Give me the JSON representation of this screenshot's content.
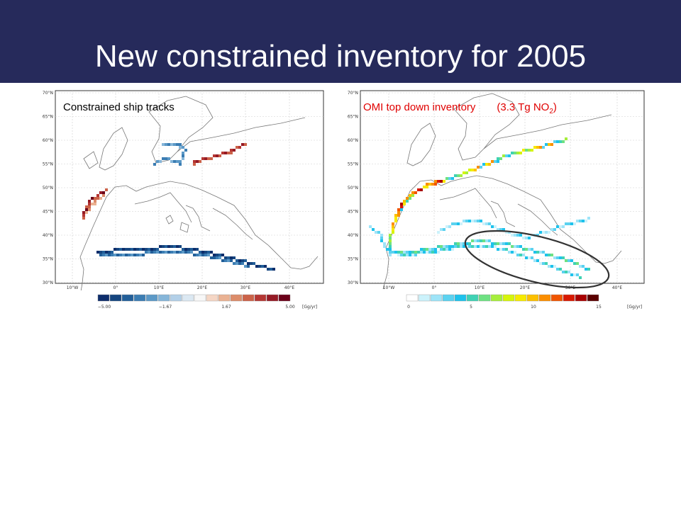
{
  "title": "New constrained inventory for 2005",
  "colors": {
    "title_bg": "#262a5b",
    "title_text": "#ffffff",
    "right_label": "#e00000",
    "left_colorbar": [
      "#0d2d6b",
      "#15457f",
      "#225f99",
      "#3b7db3",
      "#5c99c7",
      "#86b6d9",
      "#b3d0e8",
      "#dbe8f2",
      "#f7f7f7",
      "#f5d6c5",
      "#eab293",
      "#dc8c6a",
      "#cc6248",
      "#b53633",
      "#951a25",
      "#6b0019"
    ],
    "right_colorbar": [
      "#ffffff",
      "#ccf2fb",
      "#9ee4f8",
      "#5bd2f0",
      "#1ec2ec",
      "#3fd2b4",
      "#6ee182",
      "#a6ee3c",
      "#d6f50a",
      "#f6ea00",
      "#fcc000",
      "#fb8e00",
      "#f05400",
      "#d81800",
      "#a80000",
      "#5a0000"
    ]
  },
  "left_map": {
    "label": "Constrained ship tracks",
    "lat_ticks": [
      "70°N",
      "65°N",
      "60°N",
      "55°N",
      "50°N",
      "45°N",
      "40°N",
      "35°N",
      "30°N"
    ],
    "lon_ticks": [
      "10°W",
      "0°",
      "10°E",
      "20°E",
      "30°E",
      "40°E"
    ],
    "colorbar_ticks": [
      "−5.00",
      "−1.67",
      "1.67",
      "5.00"
    ],
    "colorbar_unit": "[Gg/yr]"
  },
  "right_map": {
    "label_main": "OMI top down inventory",
    "label_paren": "(3.3 Tg NO",
    "label_sub": "2",
    "label_close": ")",
    "lat_ticks": [
      "70°N",
      "65°N",
      "60°N",
      "55°N",
      "50°N",
      "45°N",
      "40°N",
      "35°N",
      "30°N"
    ],
    "lon_ticks": [
      "10°W",
      "0°",
      "10°E",
      "20°E",
      "30°E",
      "40°E"
    ],
    "colorbar_ticks": [
      "0",
      "5",
      "10",
      "15"
    ],
    "colorbar_unit": "[Gg/yr]"
  }
}
